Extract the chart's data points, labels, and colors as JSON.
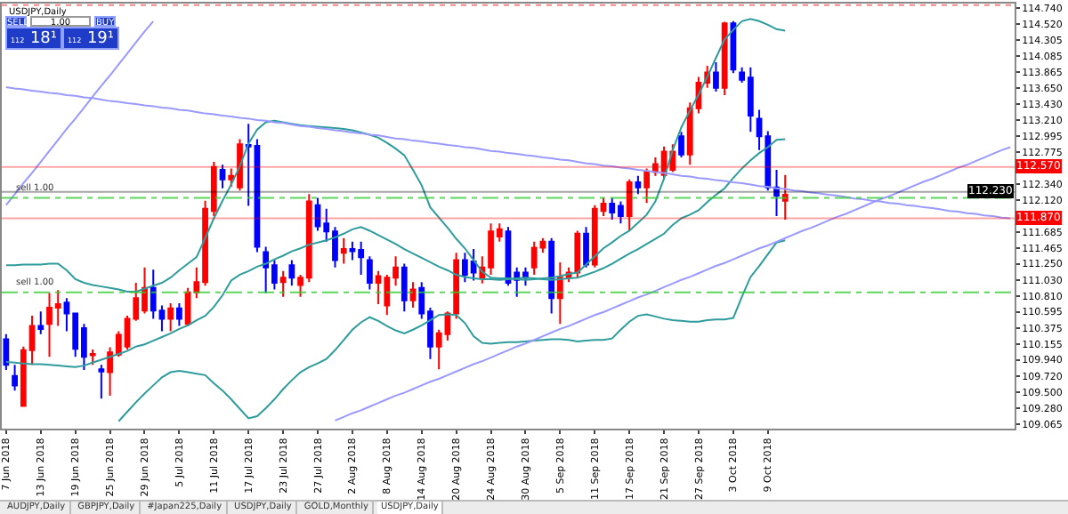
{
  "chart_data": {
    "type": "candlestick",
    "title": "USDJPY,Daily",
    "categories": [
      "7 Jun 2018",
      null,
      null,
      null,
      "13 Jun 2018",
      null,
      null,
      null,
      "19 Jun 2018",
      null,
      null,
      null,
      "25 Jun 2018",
      null,
      null,
      null,
      "29 Jun 2018",
      null,
      null,
      null,
      "5 Jul 2018",
      null,
      null,
      null,
      "11 Jul 2018",
      null,
      null,
      null,
      "17 Jul 2018",
      null,
      null,
      null,
      "23 Jul 2018",
      null,
      null,
      null,
      "27 Jul 2018",
      null,
      null,
      null,
      "2 Aug 2018",
      null,
      null,
      null,
      "8 Aug 2018",
      null,
      null,
      null,
      "14 Aug 2018",
      null,
      null,
      null,
      "20 Aug 2018",
      null,
      null,
      null,
      "24 Aug 2018",
      null,
      null,
      null,
      "30 Aug 2018",
      null,
      null,
      null,
      "5 Sep 2018",
      null,
      null,
      null,
      "11 Sep 2018",
      null,
      null,
      null,
      "17 Sep 2018",
      null,
      null,
      null,
      "21 Sep 2018",
      null,
      null,
      null,
      "27 Sep 2018",
      null,
      null,
      null,
      "3 Oct 2018",
      null,
      null,
      null,
      "9 Oct 2018",
      null,
      null,
      null,
      null,
      null,
      null,
      null,
      null,
      null,
      null,
      null,
      null,
      null,
      null,
      null,
      null,
      null,
      null,
      null,
      null,
      null,
      null,
      null,
      null,
      null,
      null,
      null,
      null
    ],
    "ohlc": [
      [
        110.22,
        110.29,
        109.8,
        109.87
      ],
      [
        109.72,
        109.87,
        109.52,
        109.59
      ],
      [
        109.31,
        110.12,
        109.3,
        110.07
      ],
      [
        110.07,
        110.54,
        109.87,
        110.4
      ],
      [
        110.4,
        110.6,
        110.29,
        110.36
      ],
      [
        110.43,
        110.85,
        109.98,
        110.65
      ],
      [
        110.65,
        110.89,
        110.4,
        110.7
      ],
      [
        110.72,
        110.78,
        110.33,
        110.57
      ],
      [
        110.57,
        110.58,
        109.98,
        110.09
      ],
      [
        110.37,
        110.43,
        109.8,
        109.98
      ],
      [
        110.0,
        110.08,
        109.87,
        110.02
      ],
      [
        109.81,
        109.87,
        109.41,
        109.78
      ],
      [
        109.77,
        110.11,
        109.45,
        110.04
      ],
      [
        110.01,
        110.33,
        109.98,
        110.28
      ],
      [
        110.12,
        110.54,
        110.08,
        110.5
      ],
      [
        110.5,
        110.99,
        110.47,
        110.78
      ],
      [
        110.61,
        111.2,
        110.57,
        110.92
      ],
      [
        110.92,
        111.17,
        110.5,
        110.61
      ],
      [
        110.61,
        110.68,
        110.33,
        110.5
      ],
      [
        110.5,
        110.71,
        110.33,
        110.64
      ],
      [
        110.64,
        110.71,
        110.4,
        110.5
      ],
      [
        110.43,
        110.92,
        110.4,
        110.86
      ],
      [
        110.86,
        111.2,
        110.78,
        111.0
      ],
      [
        111.0,
        112.11,
        110.95,
        112.0
      ],
      [
        111.97,
        112.64,
        111.9,
        112.57
      ],
      [
        112.53,
        112.6,
        112.28,
        112.4
      ],
      [
        112.4,
        112.55,
        112.3,
        112.45
      ],
      [
        112.29,
        112.95,
        112.25,
        112.88
      ],
      [
        112.87,
        113.16,
        112.04,
        112.85
      ],
      [
        112.86,
        112.95,
        111.41,
        111.48
      ],
      [
        111.41,
        111.48,
        110.85,
        111.2
      ],
      [
        111.23,
        111.3,
        110.9,
        110.99
      ],
      [
        111.0,
        111.15,
        110.8,
        111.06
      ],
      [
        111.23,
        111.3,
        110.95,
        111.06
      ],
      [
        110.96,
        111.1,
        110.8,
        111.06
      ],
      [
        111.06,
        112.2,
        111.0,
        112.1
      ],
      [
        112.05,
        112.15,
        111.7,
        111.76
      ],
      [
        111.8,
        112.0,
        111.55,
        111.69
      ],
      [
        111.69,
        111.75,
        111.2,
        111.3
      ],
      [
        111.4,
        111.6,
        111.25,
        111.45
      ],
      [
        111.45,
        111.55,
        111.3,
        111.42
      ],
      [
        111.44,
        111.55,
        111.1,
        111.34
      ],
      [
        111.3,
        111.35,
        110.9,
        110.99
      ],
      [
        110.99,
        111.15,
        110.7,
        111.08
      ],
      [
        110.68,
        111.1,
        110.55,
        111.06
      ],
      [
        111.06,
        111.35,
        110.95,
        111.2
      ],
      [
        111.2,
        111.25,
        110.6,
        110.75
      ],
      [
        110.75,
        111.0,
        110.65,
        110.9
      ],
      [
        110.92,
        111.0,
        110.5,
        110.57
      ],
      [
        110.6,
        110.65,
        109.95,
        110.12
      ],
      [
        110.12,
        110.35,
        109.81,
        110.3
      ],
      [
        110.29,
        110.6,
        110.2,
        110.57
      ],
      [
        110.57,
        111.4,
        110.5,
        111.3
      ],
      [
        111.3,
        111.4,
        111.0,
        111.1
      ],
      [
        111.28,
        111.45,
        111.02,
        111.13
      ],
      [
        111.05,
        111.35,
        110.98,
        111.2
      ],
      [
        111.2,
        111.8,
        111.1,
        111.69
      ],
      [
        111.62,
        111.8,
        111.55,
        111.72
      ],
      [
        111.69,
        111.75,
        110.95,
        110.99
      ],
      [
        111.13,
        111.2,
        110.8,
        111.03
      ],
      [
        111.13,
        111.2,
        110.95,
        111.06
      ],
      [
        111.2,
        111.55,
        111.1,
        111.47
      ],
      [
        111.47,
        111.6,
        111.4,
        111.55
      ],
      [
        111.55,
        111.6,
        110.57,
        110.78
      ],
      [
        110.78,
        111.27,
        110.43,
        111.06
      ],
      [
        111.06,
        111.2,
        111.0,
        111.13
      ],
      [
        111.13,
        111.7,
        111.05,
        111.66
      ],
      [
        111.66,
        111.75,
        111.2,
        111.24
      ],
      [
        111.24,
        112.05,
        111.2,
        112.0
      ],
      [
        111.97,
        112.15,
        111.9,
        112.07
      ],
      [
        112.07,
        112.15,
        111.85,
        111.95
      ],
      [
        112.04,
        112.1,
        111.8,
        111.9
      ],
      [
        111.9,
        112.4,
        111.7,
        112.36
      ],
      [
        112.36,
        112.45,
        112.2,
        112.29
      ],
      [
        112.29,
        112.55,
        112.08,
        112.5
      ],
      [
        112.5,
        112.7,
        112.45,
        112.61
      ],
      [
        112.46,
        112.85,
        112.4,
        112.78
      ],
      [
        112.53,
        112.88,
        112.5,
        112.78
      ],
      [
        112.99,
        113.05,
        112.7,
        112.74
      ],
      [
        112.74,
        113.45,
        112.6,
        113.37
      ],
      [
        113.37,
        113.8,
        113.3,
        113.72
      ],
      [
        113.72,
        113.95,
        113.65,
        113.86
      ],
      [
        113.86,
        114.0,
        113.6,
        113.65
      ],
      [
        113.65,
        114.55,
        113.55,
        114.53
      ],
      [
        114.53,
        114.56,
        113.85,
        113.9
      ],
      [
        113.86,
        113.93,
        113.72,
        113.76
      ],
      [
        113.79,
        113.93,
        113.05,
        113.27
      ],
      [
        113.23,
        113.35,
        112.8,
        112.99
      ],
      [
        112.99,
        113.06,
        112.25,
        112.29
      ],
      [
        112.29,
        112.53,
        111.9,
        112.18
      ],
      [
        112.11,
        112.46,
        111.85,
        112.19
      ],
      null,
      null,
      null,
      null,
      null,
      null,
      null,
      null,
      null,
      null,
      null,
      null,
      null,
      null,
      null,
      null,
      null,
      null,
      null,
      null,
      null,
      null,
      null,
      null,
      null,
      null
    ],
    "colors": [
      "#0000ff",
      "#0000ff",
      "#ff0000",
      "#ff0000",
      "#0000ff",
      "#ff0000",
      "#ff0000",
      "#0000ff",
      "#0000ff",
      "#0000ff",
      "#ff0000",
      "#0000ff",
      "#ff0000",
      "#ff0000",
      "#ff0000",
      "#ff0000",
      "#ff0000",
      "#0000ff",
      "#0000ff",
      "#ff0000",
      "#0000ff",
      "#ff0000",
      "#ff0000",
      "#ff0000",
      "#ff0000",
      "#0000ff",
      "#ff0000",
      "#ff0000",
      "#0000ff",
      "#0000ff",
      "#0000ff",
      "#0000ff",
      "#ff0000",
      "#0000ff",
      "#ff0000",
      "#ff0000",
      "#0000ff",
      "#0000ff",
      "#0000ff",
      "#ff0000",
      "#0000ff",
      "#0000ff",
      "#0000ff",
      "#ff0000",
      "#ff0000",
      "#ff0000",
      "#0000ff",
      "#ff0000",
      "#0000ff",
      "#0000ff",
      "#ff0000",
      "#ff0000",
      "#ff0000",
      "#0000ff",
      "#0000ff",
      "#ff0000",
      "#ff0000",
      "#ff0000",
      "#0000ff",
      "#0000ff",
      "#0000ff",
      "#ff0000",
      "#ff0000",
      "#0000ff",
      "#ff0000",
      "#ff0000",
      "#ff0000",
      "#0000ff",
      "#ff0000",
      "#ff0000",
      "#0000ff",
      "#0000ff",
      "#ff0000",
      "#0000ff",
      "#ff0000",
      "#ff0000",
      "#ff0000",
      "#ff0000",
      "#0000ff",
      "#ff0000",
      "#ff0000",
      "#ff0000",
      "#0000ff",
      "#ff0000",
      "#0000ff",
      "#0000ff",
      "#0000ff",
      "#0000ff",
      "#0000ff",
      "#0000ff",
      "#ff0000",
      null,
      null,
      null,
      null,
      null,
      null,
      null,
      null,
      null,
      null,
      null,
      null,
      null,
      null,
      null,
      null,
      null,
      null,
      null,
      null,
      null,
      null,
      null,
      null,
      null,
      null
    ],
    "series": [
      {
        "type": "line",
        "color": "#2e9c9c",
        "values": [
          111.23,
          111.23,
          111.24,
          111.24,
          111.24,
          111.25,
          111.25,
          111.16,
          111.04,
          110.99,
          110.96,
          110.94,
          110.92,
          110.9,
          110.87,
          110.87,
          110.91,
          110.95,
          110.99,
          111.06,
          111.16,
          111.25,
          111.34,
          111.6,
          111.87,
          112.11,
          112.33,
          112.58,
          112.89,
          113.08,
          113.18,
          113.2,
          113.18,
          113.16,
          113.14,
          113.13,
          113.12,
          113.11,
          113.1,
          113.09,
          113.07,
          113.04,
          113.01,
          112.97,
          112.9,
          112.82,
          112.73,
          112.53,
          112.32,
          112.02,
          111.88,
          111.74,
          111.59,
          111.46,
          111.3,
          111.14,
          111.06,
          111.05,
          111.05,
          111.04,
          111.03,
          111.04,
          111.05,
          111.06,
          111.08,
          111.11,
          111.13,
          111.24,
          111.35,
          111.46,
          111.54,
          111.63,
          111.7,
          111.81,
          111.92,
          112.1,
          112.41,
          112.8,
          113.11,
          113.34,
          113.56,
          113.8,
          114.06,
          114.31,
          114.44,
          114.56,
          114.59,
          114.56,
          114.51,
          114.45,
          114.43,
          null,
          null,
          null,
          null,
          null,
          null,
          null,
          null,
          null,
          null,
          null,
          null,
          null,
          null,
          null,
          null,
          null,
          null,
          null,
          null,
          null,
          null,
          null,
          null,
          null,
          null
        ]
      },
      {
        "type": "line",
        "color": "#2e9c9c",
        "values": [
          109.91,
          109.9,
          109.89,
          109.88,
          109.88,
          109.87,
          109.86,
          109.85,
          109.84,
          109.86,
          109.9,
          109.94,
          109.98,
          110.02,
          110.06,
          110.12,
          110.15,
          110.2,
          110.25,
          110.3,
          110.36,
          110.41,
          110.48,
          110.54,
          110.66,
          110.82,
          111.02,
          111.1,
          111.15,
          111.21,
          111.25,
          111.31,
          111.36,
          111.42,
          111.46,
          111.51,
          111.54,
          111.57,
          111.61,
          111.66,
          111.72,
          111.75,
          111.7,
          111.64,
          111.58,
          111.52,
          111.45,
          111.39,
          111.33,
          111.27,
          111.21,
          111.16,
          111.1,
          111.07,
          111.05,
          111.04,
          111.04,
          111.03,
          111.04,
          111.05,
          111.06,
          111.05,
          111.04,
          111.03,
          111.04,
          111.05,
          111.06,
          111.1,
          111.14,
          111.19,
          111.25,
          111.32,
          111.39,
          111.45,
          111.52,
          111.59,
          111.66,
          111.78,
          111.87,
          111.92,
          111.98,
          112.09,
          112.19,
          112.28,
          112.42,
          112.55,
          112.66,
          112.76,
          112.84,
          112.94,
          112.95,
          null,
          null,
          null,
          null,
          null,
          null,
          null,
          null,
          null,
          null,
          null,
          null,
          null,
          null,
          null,
          null,
          null,
          null,
          null,
          null,
          null,
          null,
          null,
          null,
          null,
          null
        ]
      },
      {
        "type": "line",
        "color": "#2e9c9c",
        "values": [
          null,
          null,
          null,
          null,
          null,
          null,
          null,
          null,
          null,
          null,
          null,
          null,
          null,
          109.1,
          109.23,
          109.36,
          109.48,
          109.59,
          109.7,
          109.77,
          109.79,
          109.77,
          109.75,
          109.73,
          109.62,
          109.52,
          109.4,
          109.27,
          109.14,
          109.17,
          109.28,
          109.4,
          109.54,
          109.66,
          109.77,
          109.84,
          109.89,
          109.95,
          110.07,
          110.21,
          110.35,
          110.45,
          110.52,
          110.47,
          110.4,
          110.34,
          110.3,
          110.35,
          110.41,
          110.48,
          110.55,
          110.56,
          110.55,
          110.44,
          110.26,
          110.17,
          110.16,
          110.17,
          110.18,
          110.18,
          110.19,
          110.2,
          110.21,
          110.22,
          110.22,
          110.21,
          110.19,
          110.2,
          110.21,
          110.21,
          110.23,
          110.35,
          110.46,
          110.54,
          110.56,
          110.53,
          110.5,
          110.48,
          110.47,
          110.46,
          110.46,
          110.48,
          110.49,
          110.49,
          110.51,
          110.8,
          111.07,
          111.22,
          111.38,
          111.54,
          111.57,
          null,
          null,
          null,
          null,
          null,
          null,
          null,
          null,
          null,
          null,
          null,
          null,
          null,
          null,
          null,
          null,
          null,
          null,
          null,
          null,
          null,
          null,
          null,
          null,
          null,
          null
        ]
      },
      {
        "type": "line",
        "color": "#9999ff",
        "values": [
          112.05,
          112.2,
          112.35,
          112.49,
          112.64,
          112.79,
          112.94,
          113.09,
          113.23,
          113.38,
          113.53,
          113.68,
          113.82,
          113.97,
          114.12,
          114.27,
          114.42,
          114.56,
          null,
          null,
          null,
          null,
          null,
          null,
          null,
          null,
          null,
          null,
          null,
          null,
          null,
          null,
          null,
          null,
          null,
          null,
          null,
          null,
          null,
          null,
          null,
          null,
          null,
          null,
          null,
          null,
          null,
          null,
          null,
          null,
          null,
          null,
          null,
          null,
          null,
          null,
          null,
          null,
          null,
          null,
          null,
          null,
          null,
          null,
          null,
          null,
          null,
          null,
          null,
          null,
          null,
          null,
          null,
          null,
          null,
          null,
          null,
          null,
          null,
          null,
          null,
          null,
          null,
          null,
          null,
          null,
          null,
          null,
          null,
          null,
          null,
          null,
          null,
          null,
          null,
          null,
          null,
          null,
          null,
          null,
          null,
          null,
          null,
          null,
          null,
          null,
          null,
          null,
          null,
          null,
          null,
          null,
          null,
          null,
          null,
          null,
          null
        ]
      },
      {
        "type": "line",
        "color": "#9999ff",
        "values": [
          113.66,
          113.64,
          113.63,
          113.61,
          113.6,
          113.58,
          113.57,
          113.55,
          113.54,
          113.52,
          113.51,
          113.49,
          113.47,
          113.46,
          113.44,
          113.43,
          113.41,
          113.4,
          113.38,
          113.37,
          113.35,
          113.34,
          113.32,
          113.3,
          113.29,
          113.27,
          113.26,
          113.24,
          113.23,
          113.21,
          113.2,
          113.18,
          113.17,
          113.15,
          113.13,
          113.12,
          113.1,
          113.09,
          113.07,
          113.06,
          113.04,
          113.03,
          113.01,
          113.0,
          112.98,
          112.96,
          112.95,
          112.93,
          112.92,
          112.9,
          112.89,
          112.87,
          112.86,
          112.84,
          112.83,
          112.81,
          112.79,
          112.78,
          112.76,
          112.75,
          112.73,
          112.72,
          112.7,
          112.69,
          112.67,
          112.66,
          112.64,
          112.62,
          112.61,
          112.59,
          112.58,
          112.56,
          112.55,
          112.53,
          112.52,
          112.5,
          112.49,
          112.47,
          112.45,
          112.44,
          112.42,
          112.41,
          112.39,
          112.38,
          112.36,
          112.35,
          112.33,
          112.31,
          112.3,
          112.28,
          112.27,
          112.25,
          112.24,
          112.22,
          112.21,
          112.19,
          112.18,
          112.16,
          112.14,
          112.13,
          112.11,
          112.1,
          112.08,
          112.07,
          112.05,
          112.04,
          112.02,
          112.01,
          111.99,
          111.97,
          111.96,
          111.94,
          111.93,
          111.91,
          111.9,
          111.88,
          111.87
        ]
      },
      {
        "type": "line",
        "color": "#9999ff",
        "values": [
          null,
          null,
          null,
          null,
          null,
          null,
          null,
          null,
          null,
          null,
          null,
          null,
          null,
          null,
          null,
          null,
          null,
          null,
          null,
          null,
          null,
          null,
          null,
          null,
          null,
          null,
          null,
          null,
          null,
          null,
          null,
          null,
          null,
          null,
          null,
          null,
          null,
          null,
          109.11,
          109.16,
          109.21,
          109.25,
          109.3,
          109.35,
          109.4,
          109.45,
          109.49,
          109.54,
          109.59,
          109.64,
          109.68,
          109.73,
          109.78,
          109.83,
          109.88,
          109.92,
          109.97,
          110.02,
          110.07,
          110.12,
          110.16,
          110.21,
          110.26,
          110.31,
          110.36,
          110.4,
          110.45,
          110.5,
          110.55,
          110.59,
          110.64,
          110.69,
          110.74,
          110.79,
          110.83,
          110.88,
          110.93,
          110.98,
          111.03,
          111.07,
          111.12,
          111.17,
          111.22,
          111.26,
          111.31,
          111.36,
          111.41,
          111.46,
          111.5,
          111.55,
          111.6,
          111.65,
          111.7,
          111.74,
          111.79,
          111.84,
          111.89,
          111.93,
          111.98,
          112.03,
          112.08,
          112.13,
          112.17,
          112.22,
          112.27,
          112.32,
          112.37,
          112.41,
          112.46,
          112.51,
          112.56,
          112.6,
          112.65,
          112.7,
          112.75,
          112.8,
          112.84
        ]
      }
    ],
    "ylim": [
      109.0,
      114.8
    ],
    "yticks": [
      {
        "value": 109.065,
        "label": "109.065"
      },
      {
        "value": 109.28,
        "label": "109.280"
      },
      {
        "value": 109.5,
        "label": "109.500"
      },
      {
        "value": 109.72,
        "label": "109.720"
      },
      {
        "value": 109.94,
        "label": "109.940"
      },
      {
        "value": 110.155,
        "label": "110.155"
      },
      {
        "value": 110.375,
        "label": "110.375"
      },
      {
        "value": 110.595,
        "label": "110.595"
      },
      {
        "value": 110.81,
        "label": "110.810"
      },
      {
        "value": 111.03,
        "label": "111.030"
      },
      {
        "value": 111.25,
        "label": "111.250"
      },
      {
        "value": 111.465,
        "label": "111.465"
      },
      {
        "value": 111.685,
        "label": "111.685"
      },
      {
        "value": 112.12,
        "label": "112.120"
      },
      {
        "value": 112.34,
        "label": "112.340"
      },
      {
        "value": 112.775,
        "label": "112.775"
      },
      {
        "value": 112.995,
        "label": "112.995"
      },
      {
        "value": 113.21,
        "label": "113.210"
      },
      {
        "value": 113.43,
        "label": "113.430"
      },
      {
        "value": 113.65,
        "label": "113.650"
      },
      {
        "value": 113.865,
        "label": "113.865"
      },
      {
        "value": 114.085,
        "label": "114.085"
      },
      {
        "value": 114.305,
        "label": "114.305"
      },
      {
        "value": 114.52,
        "label": "114.520"
      },
      {
        "value": 114.74,
        "label": "114.740"
      }
    ],
    "ref_lines": [
      {
        "axis": "y",
        "value": 112.57,
        "label": "112.570",
        "color": "#ff0000"
      },
      {
        "axis": "y",
        "value": 111.87,
        "label": "111.870",
        "color": "#ff0000"
      },
      {
        "axis": "y",
        "value": 112.23,
        "label": "112.230",
        "color": "#000000"
      },
      {
        "axis": "y",
        "value": 112.15,
        "label": "sell 1.00",
        "color": "#33cc33",
        "line_style": "dashdot"
      },
      {
        "axis": "y",
        "value": 110.86,
        "label": "sell 1.00",
        "color": "#33cc33",
        "line_style": "dashdot"
      },
      {
        "axis": "y",
        "value": 114.78,
        "color": "#ff6666",
        "line_style": "dotted"
      }
    ],
    "annotations": [
      "SELL",
      "1.00",
      "BUY",
      "112",
      "18¹",
      "112",
      "19¹",
      "AUDJPY,Daily",
      "GBPJPY,Daily",
      "#Japan225,Daily",
      "USDJPY,Daily",
      "GOLD,Monthly",
      "USDJPY,Daily"
    ]
  }
}
